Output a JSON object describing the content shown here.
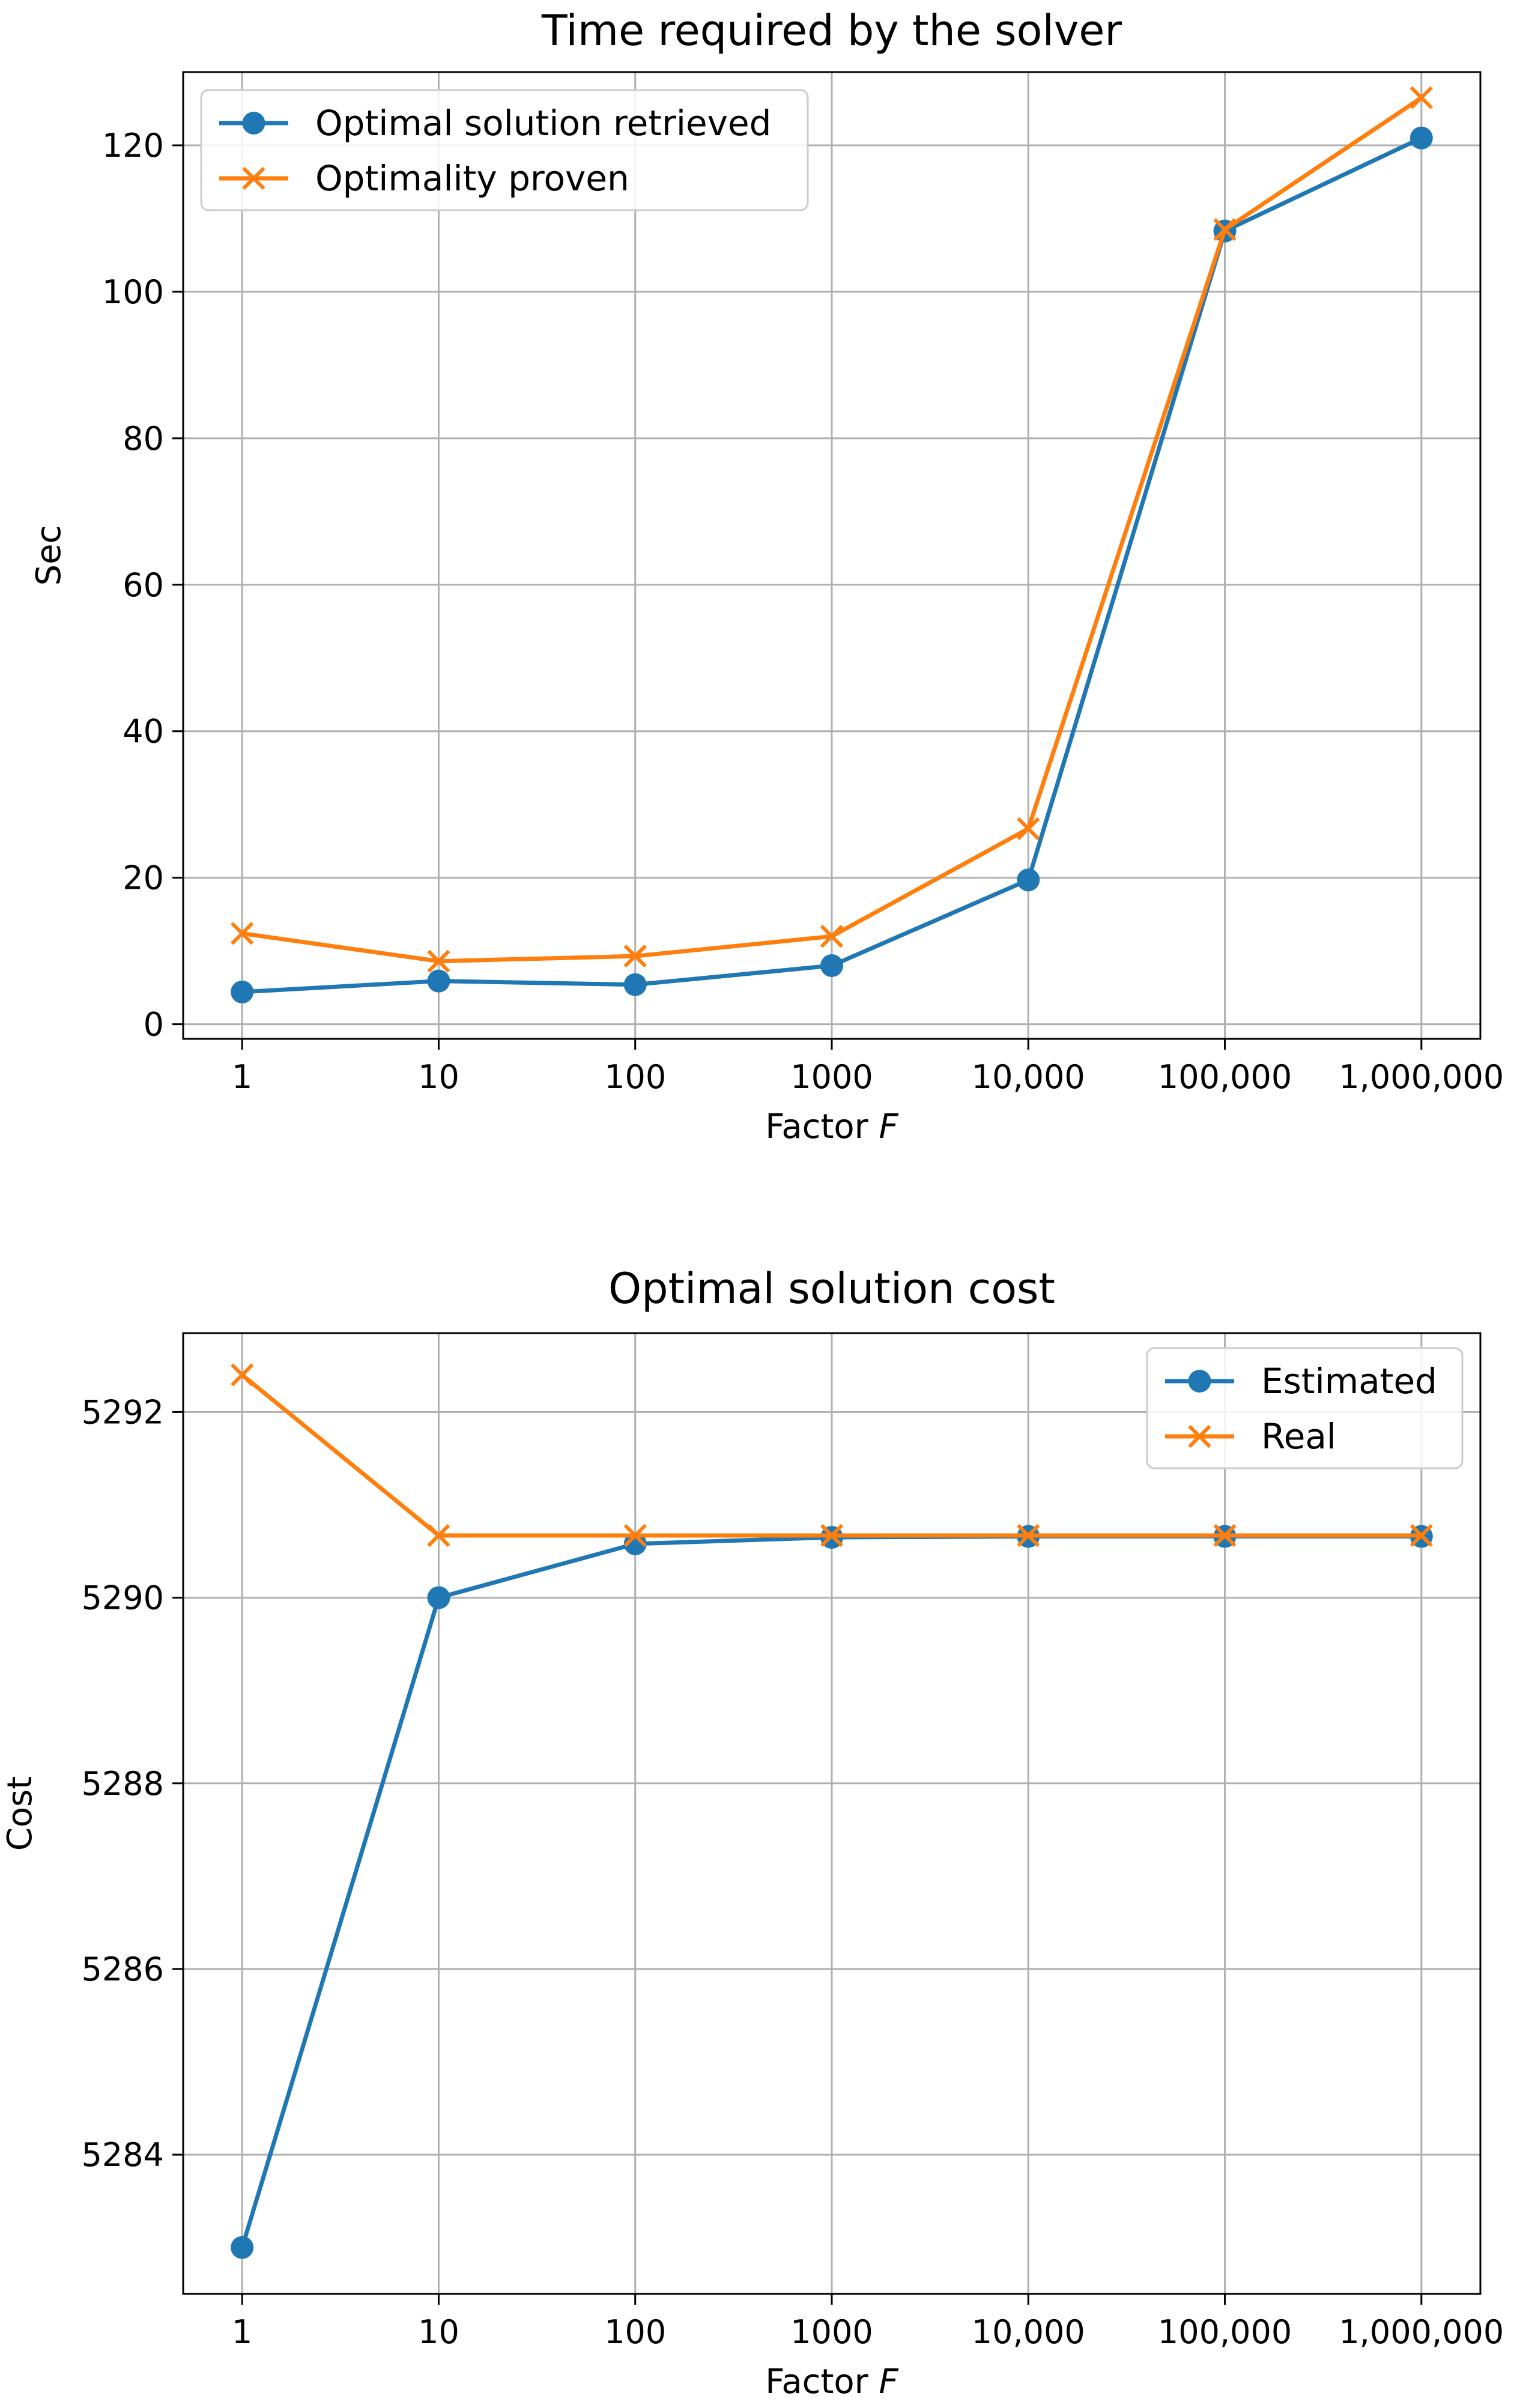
{
  "chart_data": [
    {
      "type": "line",
      "title": "Time required by the solver",
      "xlabel": "Factor",
      "xlabel_var": "F",
      "ylabel": "Sec",
      "categories": [
        "1",
        "10",
        "100",
        "1000",
        "10,000",
        "100,000",
        "1,000,000"
      ],
      "ylim": [
        -2,
        130
      ],
      "yticks": [
        0,
        20,
        40,
        60,
        80,
        100,
        120
      ],
      "grid": true,
      "legend_position": "top-left",
      "series": [
        {
          "name": "Optimal solution retrieved",
          "marker": "circle",
          "color": "#1f77b4",
          "values": [
            4.4,
            5.9,
            5.4,
            8.0,
            19.7,
            108.3,
            121.0
          ]
        },
        {
          "name": "Optimality proven",
          "marker": "x",
          "color": "#ff7f0e",
          "values": [
            12.4,
            8.6,
            9.3,
            12.0,
            26.7,
            108.5,
            126.5
          ]
        }
      ]
    },
    {
      "type": "line",
      "title": "Optimal solution cost",
      "xlabel": "Factor",
      "xlabel_var": "F",
      "ylabel": "Cost",
      "categories": [
        "1",
        "10",
        "100",
        "1000",
        "10,000",
        "100,000",
        "1,000,000"
      ],
      "ylim": [
        5282.5,
        5292.85
      ],
      "yticks": [
        5284,
        5286,
        5288,
        5290,
        5292
      ],
      "grid": true,
      "legend_position": "top-right",
      "series": [
        {
          "name": "Estimated",
          "marker": "circle",
          "color": "#1f77b4",
          "values": [
            5283.0,
            5290.0,
            5290.58,
            5290.65,
            5290.66,
            5290.66,
            5290.66
          ]
        },
        {
          "name": "Real",
          "marker": "x",
          "color": "#ff7f0e",
          "values": [
            5292.4,
            5290.67,
            5290.67,
            5290.67,
            5290.67,
            5290.67,
            5290.67
          ]
        }
      ]
    }
  ]
}
